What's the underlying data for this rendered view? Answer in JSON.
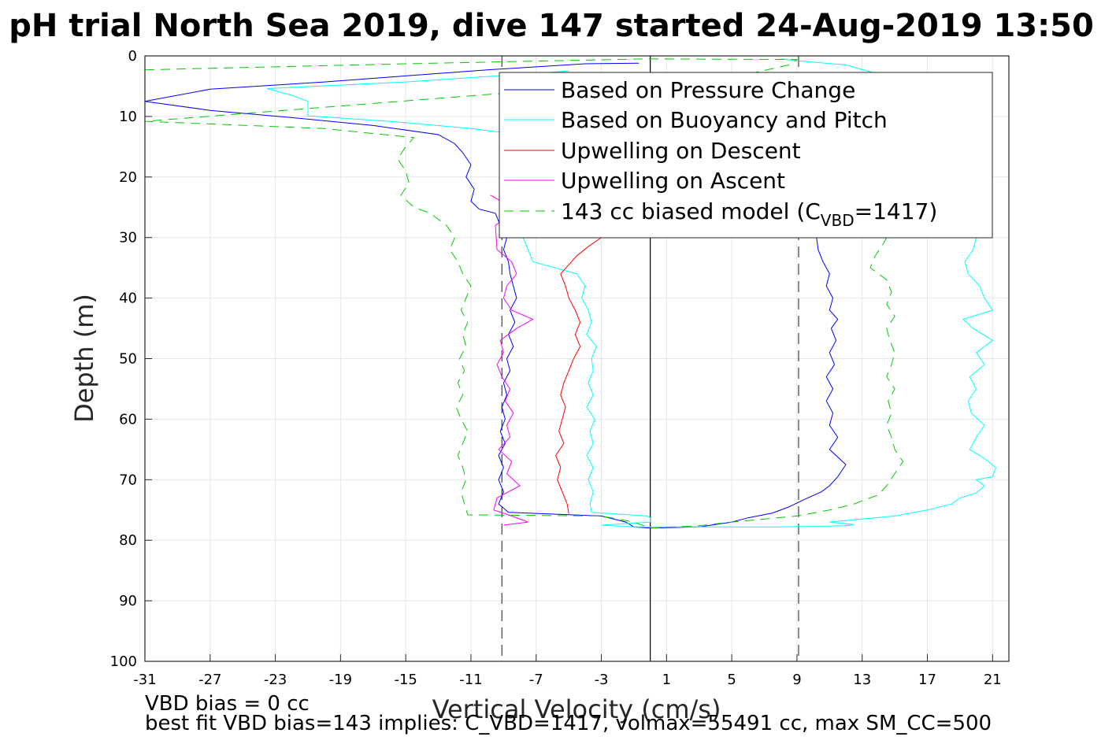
{
  "chart_data": {
    "type": "line",
    "title": "pH trial North Sea 2019, dive 147 started 24-Aug-2019 13:50",
    "xlabel": "Vertical Velocity (cm/s)",
    "ylabel": "Depth (m)",
    "xlim": [
      -31,
      22
    ],
    "ylim": [
      0,
      100
    ],
    "y_reversed": true,
    "grid": true,
    "xticks": [
      -31,
      -27,
      -23,
      -19,
      -15,
      -11,
      -7,
      -3,
      1,
      5,
      9,
      13,
      17,
      21
    ],
    "yticks": [
      0,
      10,
      20,
      30,
      40,
      50,
      60,
      70,
      80,
      90,
      100
    ],
    "vertical_lines": [
      {
        "x": -9.1,
        "style": "dashed",
        "color": "#404040"
      },
      {
        "x": 0,
        "style": "solid",
        "color": "#000000"
      },
      {
        "x": 9.1,
        "style": "dashed",
        "color": "#404040"
      }
    ],
    "legend_position": "top-right",
    "series": [
      {
        "name": "Based on Pressure Change",
        "color": "#0000ff",
        "dash": "solid",
        "points": [
          [
            -0.7,
            1.2
          ],
          [
            -4,
            1.3
          ],
          [
            -10,
            2.3
          ],
          [
            -20,
            4.3
          ],
          [
            -27,
            5.5
          ],
          [
            -31,
            7.5
          ],
          [
            -27,
            9.0
          ],
          [
            -22,
            10.2
          ],
          [
            -17,
            11.5
          ],
          [
            -13,
            13.0
          ],
          [
            -12,
            14.5
          ],
          [
            -11.5,
            16
          ],
          [
            -11,
            18
          ],
          [
            -11.3,
            20
          ],
          [
            -10.8,
            22
          ],
          [
            -11,
            24
          ],
          [
            -10.5,
            25.3
          ],
          [
            -9.5,
            26
          ],
          [
            -9.2,
            28
          ],
          [
            -8.8,
            30
          ],
          [
            -9.0,
            32
          ],
          [
            -8.7,
            34
          ],
          [
            -8.6,
            36
          ],
          [
            -8.4,
            38
          ],
          [
            -8.2,
            40
          ],
          [
            -8.6,
            42
          ],
          [
            -8.3,
            44
          ],
          [
            -8.7,
            46
          ],
          [
            -8.4,
            48
          ],
          [
            -8.8,
            50
          ],
          [
            -8.6,
            52
          ],
          [
            -9.0,
            54
          ],
          [
            -8.8,
            56
          ],
          [
            -9.1,
            58
          ],
          [
            -8.9,
            60
          ],
          [
            -9.2,
            62
          ],
          [
            -8.9,
            64
          ],
          [
            -9.3,
            66
          ],
          [
            -9.0,
            68
          ],
          [
            -9.3,
            70
          ],
          [
            -9.0,
            72
          ],
          [
            -9.3,
            74
          ],
          [
            -8.7,
            75.4
          ],
          [
            -3,
            76
          ],
          [
            -1.5,
            77
          ],
          [
            -1,
            77.8
          ],
          [
            0,
            78
          ],
          [
            3,
            77.8
          ],
          [
            5,
            77
          ],
          [
            6,
            76.3
          ],
          [
            7.5,
            75.5
          ],
          [
            8.5,
            74.5
          ],
          [
            9.5,
            73.2
          ],
          [
            10.5,
            72
          ],
          [
            11,
            71
          ],
          [
            11.5,
            69.5
          ],
          [
            12,
            67.5
          ],
          [
            11,
            65
          ],
          [
            11.5,
            63
          ],
          [
            11,
            61
          ],
          [
            11.2,
            59
          ],
          [
            10.8,
            57
          ],
          [
            11.2,
            55
          ],
          [
            10.8,
            53
          ],
          [
            11.3,
            51
          ],
          [
            11,
            49
          ],
          [
            11.4,
            47
          ],
          [
            11.1,
            45
          ],
          [
            11.5,
            43.5
          ],
          [
            11,
            42
          ],
          [
            11.2,
            40
          ],
          [
            10.8,
            38
          ],
          [
            11,
            36
          ],
          [
            10.6,
            34
          ],
          [
            10.3,
            32
          ],
          [
            10.2,
            30
          ]
        ]
      },
      {
        "name": "Based on Buoyancy and Pitch",
        "color": "#00ffff",
        "dash": "solid",
        "points": [
          [
            -5,
            2.5
          ],
          [
            -15,
            4.3
          ],
          [
            -23.5,
            5.4
          ],
          [
            -22,
            6.5
          ],
          [
            -21,
            7.5
          ],
          [
            -21,
            9.9
          ],
          [
            -16,
            10.8
          ],
          [
            -11,
            12.0
          ],
          [
            -8,
            13.0
          ],
          [
            -8.5,
            24
          ],
          [
            -8.2,
            28
          ],
          [
            -7.8,
            30
          ],
          [
            -7.5,
            32
          ],
          [
            -7.2,
            34
          ],
          [
            -4.5,
            36
          ],
          [
            -4.0,
            38
          ],
          [
            -4.2,
            40
          ],
          [
            -3.8,
            42
          ],
          [
            -3.6,
            44
          ],
          [
            -3.9,
            46
          ],
          [
            -3.3,
            48
          ],
          [
            -3.6,
            50
          ],
          [
            -3.5,
            52
          ],
          [
            -3.8,
            54
          ],
          [
            -3.5,
            56
          ],
          [
            -3.9,
            58
          ],
          [
            -3.4,
            60
          ],
          [
            -3.7,
            62
          ],
          [
            -3.5,
            64
          ],
          [
            -3.9,
            66
          ],
          [
            -3.5,
            68
          ],
          [
            -3.8,
            70
          ],
          [
            -3.5,
            72
          ],
          [
            -3.7,
            74
          ],
          [
            -3.6,
            75.4
          ],
          [
            -0.2,
            76
          ],
          [
            0,
            76.3
          ],
          [
            0,
            77
          ],
          [
            -3,
            77.5
          ],
          [
            -1,
            77.8
          ],
          [
            8,
            77.8
          ],
          [
            12,
            77.6
          ],
          [
            12.5,
            77.4
          ],
          [
            11,
            77
          ],
          [
            13,
            76.5
          ],
          [
            15,
            76
          ],
          [
            17,
            75
          ],
          [
            18.5,
            74
          ],
          [
            19,
            73
          ],
          [
            20,
            72.2
          ],
          [
            20.5,
            71
          ],
          [
            20,
            70
          ],
          [
            21,
            69.5
          ],
          [
            21.2,
            68
          ],
          [
            20.5,
            66.5
          ],
          [
            19.6,
            65
          ],
          [
            20,
            63
          ],
          [
            20.5,
            61
          ],
          [
            19.7,
            59
          ],
          [
            19.5,
            57
          ],
          [
            20,
            55
          ],
          [
            19.6,
            53
          ],
          [
            20.5,
            51
          ],
          [
            20,
            49
          ],
          [
            21,
            47
          ],
          [
            19.8,
            45
          ],
          [
            19.2,
            43.5
          ],
          [
            21,
            42
          ],
          [
            20.5,
            40
          ],
          [
            20.2,
            38
          ],
          [
            19.5,
            36
          ],
          [
            19.3,
            34
          ],
          [
            19.8,
            32
          ],
          [
            20,
            30
          ],
          [
            14,
            3
          ],
          [
            12,
            1.5
          ],
          [
            9,
            0.8
          ],
          [
            8,
            0.5
          ]
        ]
      },
      {
        "name": "Upwelling on Descent",
        "color": "#ff0000",
        "dash": "solid",
        "points": [
          [
            -3,
            30
          ],
          [
            -3.8,
            31.5
          ],
          [
            -4.5,
            33
          ],
          [
            -5,
            34.5
          ],
          [
            -5.5,
            36
          ],
          [
            -5.2,
            38
          ],
          [
            -5.0,
            40
          ],
          [
            -4.6,
            42
          ],
          [
            -4.3,
            44
          ],
          [
            -4.6,
            46
          ],
          [
            -4.3,
            48
          ],
          [
            -4.7,
            50
          ],
          [
            -5.0,
            52
          ],
          [
            -5.3,
            54
          ],
          [
            -5.5,
            56
          ],
          [
            -5.2,
            58
          ],
          [
            -5.4,
            60
          ],
          [
            -5.6,
            62
          ],
          [
            -5.3,
            64
          ],
          [
            -5.8,
            66
          ],
          [
            -5.5,
            68
          ],
          [
            -5.7,
            70
          ],
          [
            -5.4,
            72
          ],
          [
            -5.1,
            74
          ],
          [
            -5.0,
            75.6
          ]
        ]
      },
      {
        "name": "Upwelling on Ascent",
        "color": "#ff00ff",
        "dash": "solid",
        "points": [
          [
            -9.8,
            23
          ],
          [
            -8.5,
            25
          ],
          [
            -9,
            27
          ],
          [
            -9.5,
            28
          ],
          [
            -9.4,
            32
          ],
          [
            -8.5,
            34
          ],
          [
            -8.2,
            36
          ],
          [
            -8.8,
            38
          ],
          [
            -9.0,
            40
          ],
          [
            -8.5,
            42
          ],
          [
            -7.2,
            43.5
          ],
          [
            -8.2,
            45
          ],
          [
            -9.2,
            47
          ],
          [
            -9.0,
            49
          ],
          [
            -9.4,
            51
          ],
          [
            -9.1,
            53
          ],
          [
            -8.6,
            55
          ],
          [
            -8.9,
            57
          ],
          [
            -8.4,
            59
          ],
          [
            -8.8,
            61
          ],
          [
            -8.6,
            63
          ],
          [
            -9.3,
            65
          ],
          [
            -8.5,
            67
          ],
          [
            -8.8,
            69
          ],
          [
            -8.0,
            71
          ],
          [
            -9.4,
            73
          ],
          [
            -9.6,
            75
          ],
          [
            -8.5,
            76
          ],
          [
            -7.5,
            77
          ],
          [
            -9,
            77.5
          ]
        ]
      },
      {
        "name": "143 cc biased model (C_VBD=1417)",
        "color": "#00cc00",
        "dash": "dashed",
        "points": [
          [
            -31,
            2.3
          ],
          [
            -15,
            1.3
          ],
          [
            -0.2,
            0.5
          ],
          [
            9,
            0.6
          ],
          [
            8.5,
            1.5
          ],
          [
            6,
            3
          ],
          [
            -31,
            10.8
          ],
          [
            -20,
            12
          ],
          [
            -14.5,
            13.5
          ],
          [
            -15,
            15
          ],
          [
            -15.5,
            17
          ],
          [
            -15,
            19
          ],
          [
            -14.8,
            21
          ],
          [
            -15.3,
            23
          ],
          [
            -14.5,
            25
          ],
          [
            -13.5,
            26
          ],
          [
            -12.5,
            28
          ],
          [
            -12,
            30
          ],
          [
            -12.3,
            32
          ],
          [
            -11.8,
            34
          ],
          [
            -11.5,
            36
          ],
          [
            -11,
            38
          ],
          [
            -11.3,
            40
          ],
          [
            -11.6,
            42
          ],
          [
            -11.2,
            44
          ],
          [
            -11.5,
            46
          ],
          [
            -11.3,
            48
          ],
          [
            -11.7,
            50
          ],
          [
            -11.4,
            52
          ],
          [
            -11.8,
            54
          ],
          [
            -11.5,
            56
          ],
          [
            -11.9,
            58
          ],
          [
            -11.6,
            60
          ],
          [
            -11.2,
            62
          ],
          [
            -11.5,
            64
          ],
          [
            -11.8,
            66
          ],
          [
            -11.5,
            68
          ],
          [
            -11.3,
            70
          ],
          [
            -11.6,
            72
          ],
          [
            -11.4,
            74
          ],
          [
            -11.2,
            75.8
          ],
          [
            -3,
            76
          ],
          [
            -1,
            77
          ],
          [
            0,
            78
          ],
          [
            3,
            77.6
          ],
          [
            5,
            77
          ],
          [
            7,
            76.5
          ],
          [
            9,
            76
          ],
          [
            11,
            75
          ],
          [
            12.5,
            74
          ],
          [
            14,
            72.5
          ],
          [
            14.5,
            71
          ],
          [
            15,
            69
          ],
          [
            15.5,
            67
          ],
          [
            15,
            65
          ],
          [
            14.8,
            63
          ],
          [
            14.5,
            61
          ],
          [
            14.8,
            59
          ],
          [
            14.6,
            57
          ],
          [
            15,
            55
          ],
          [
            14.5,
            53
          ],
          [
            14.8,
            51
          ],
          [
            15,
            49
          ],
          [
            14.7,
            47
          ],
          [
            14.5,
            45
          ],
          [
            15,
            43
          ],
          [
            14.5,
            41
          ],
          [
            14.8,
            39
          ],
          [
            14.5,
            37
          ],
          [
            13.5,
            35
          ],
          [
            13.8,
            33
          ],
          [
            14.3,
            31
          ],
          [
            14.5,
            30
          ]
        ]
      }
    ]
  },
  "notes": {
    "line1": "VBD bias = 0 cc",
    "line2": "best fit VBD bias=143 implies: C_VBD=1417, volmax=55491 cc, max SM_CC=500"
  },
  "legend": {
    "items": [
      {
        "label": "Based on Pressure Change",
        "color": "#0000ff",
        "dash": "solid"
      },
      {
        "label": "Based on Buoyancy and Pitch",
        "color": "#00ffff",
        "dash": "solid"
      },
      {
        "label": "Upwelling on Descent",
        "color": "#ff0000",
        "dash": "solid"
      },
      {
        "label": "Upwelling on Ascent",
        "color": "#ff00ff",
        "dash": "solid"
      },
      {
        "label_prefix": "143 cc biased model (C",
        "label_sub": "VBD",
        "label_suffix": "=1417)",
        "color": "#00cc00",
        "dash": "dashed"
      }
    ]
  }
}
